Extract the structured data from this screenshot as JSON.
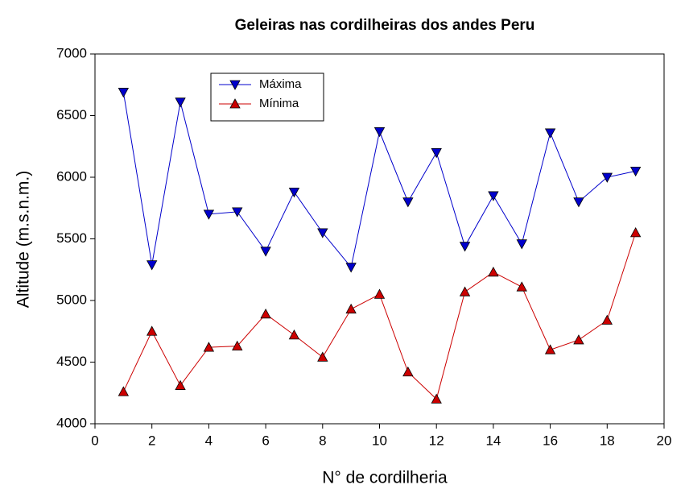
{
  "chart_data": {
    "type": "line",
    "title": "Geleiras nas cordilheiras dos andes Peru",
    "x_label": "N° de cordilheria",
    "y_label": "Altitude (m.s.n.m.)",
    "x": [
      1,
      2,
      3,
      4,
      5,
      6,
      7,
      8,
      9,
      10,
      11,
      12,
      13,
      14,
      15,
      16,
      17,
      18,
      19
    ],
    "series": [
      {
        "name": "Máxima",
        "color": "#0000cc",
        "marker": "triangle-down",
        "values": [
          6690,
          5290,
          6610,
          5700,
          5720,
          5400,
          5880,
          5550,
          5270,
          6370,
          5800,
          6200,
          5440,
          5850,
          5460,
          6360,
          5800,
          6000,
          6050
        ]
      },
      {
        "name": "Mínima",
        "color": "#cc0000",
        "marker": "triangle-up",
        "values": [
          4260,
          4750,
          4310,
          4620,
          4630,
          4890,
          4720,
          4540,
          4930,
          5050,
          4420,
          4200,
          5070,
          5230,
          5110,
          4600,
          4680,
          4840,
          5550
        ]
      }
    ],
    "xlim": [
      0,
      20
    ],
    "xticks": [
      0,
      2,
      4,
      6,
      8,
      10,
      12,
      14,
      16,
      18,
      20
    ],
    "ylim": [
      4000,
      7000
    ],
    "yticks": [
      4000,
      4500,
      5000,
      5500,
      6000,
      6500,
      7000
    ],
    "legend": "upper-left"
  }
}
